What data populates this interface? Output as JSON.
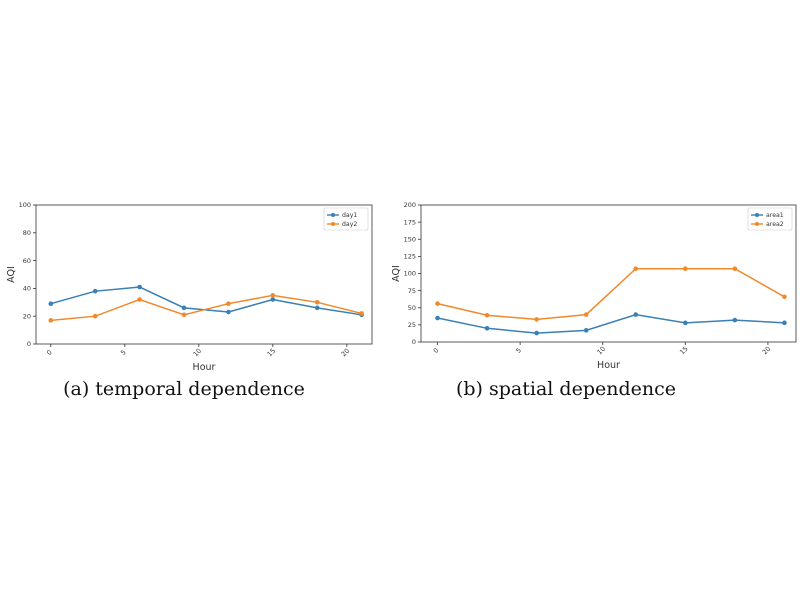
{
  "charts": [
    {
      "caption": "(a) temporal dependence",
      "chart_data": {
        "type": "line",
        "x": [
          0,
          3,
          6,
          9,
          12,
          15,
          18,
          21
        ],
        "xticks": [
          0,
          5,
          10,
          15,
          20
        ],
        "xlim": [
          -1,
          21.7
        ],
        "ylim": [
          0,
          100
        ],
        "yticks": [
          0,
          20,
          40,
          60,
          80,
          100
        ],
        "xlabel": "Hour",
        "ylabel": "AQI",
        "grid": false,
        "legend_position": "top-right",
        "series": [
          {
            "name": "day1",
            "color": "#3a7fb5",
            "values": [
              29,
              38,
              41,
              26,
              23,
              32,
              26,
              21
            ]
          },
          {
            "name": "day2",
            "color": "#f0892c",
            "values": [
              17,
              20,
              32,
              21,
              29,
              35,
              30,
              22
            ]
          }
        ]
      }
    },
    {
      "caption": "(b) spatial dependence",
      "chart_data": {
        "type": "line",
        "x": [
          0,
          3,
          6,
          9,
          12,
          15,
          18,
          21
        ],
        "xticks": [
          0,
          5,
          10,
          15,
          20
        ],
        "xlim": [
          -1,
          21.7
        ],
        "ylim": [
          0,
          200
        ],
        "yticks": [
          0,
          25,
          50,
          75,
          100,
          125,
          150,
          175,
          200
        ],
        "xlabel": "Hour",
        "ylabel": "AQI",
        "grid": false,
        "legend_position": "top-right",
        "series": [
          {
            "name": "area1",
            "color": "#3a7fb5",
            "values": [
              35,
              20,
              13,
              17,
              40,
              28,
              32,
              28
            ]
          },
          {
            "name": "area2",
            "color": "#f0892c",
            "values": [
              56,
              39,
              33,
              40,
              107,
              107,
              107,
              66
            ]
          }
        ]
      }
    }
  ]
}
